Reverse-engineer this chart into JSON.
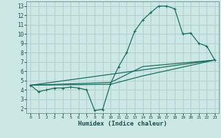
{
  "xlabel": "Humidex (Indice chaleur)",
  "bg_color": "#cce8e4",
  "grid_color": "#aacccc",
  "line_color": "#1a6b5a",
  "xlim": [
    -0.5,
    23.5
  ],
  "ylim": [
    1.5,
    13.5
  ],
  "xticks": [
    0,
    1,
    2,
    3,
    4,
    5,
    6,
    7,
    8,
    9,
    10,
    11,
    12,
    13,
    14,
    15,
    16,
    17,
    18,
    19,
    20,
    21,
    22,
    23
  ],
  "yticks": [
    2,
    3,
    4,
    5,
    6,
    7,
    8,
    9,
    10,
    11,
    12,
    13
  ],
  "line1_x": [
    0,
    1,
    2,
    3,
    4,
    5,
    6,
    7,
    8,
    9,
    10,
    11,
    12,
    13,
    14,
    15,
    16,
    17,
    18,
    19,
    20,
    21,
    22,
    23
  ],
  "line1_y": [
    4.5,
    3.8,
    4.0,
    4.2,
    4.2,
    4.3,
    4.2,
    4.0,
    1.8,
    1.9,
    4.7,
    6.5,
    8.0,
    10.3,
    11.5,
    12.3,
    13.0,
    13.0,
    12.7,
    10.0,
    10.1,
    9.0,
    8.7,
    7.2
  ],
  "line2_x": [
    0,
    23
  ],
  "line2_y": [
    4.5,
    7.2
  ],
  "line3_x": [
    0,
    10,
    14,
    23
  ],
  "line3_y": [
    4.5,
    4.8,
    6.5,
    7.2
  ],
  "line4_x": [
    0,
    10,
    14,
    23
  ],
  "line4_y": [
    4.5,
    4.6,
    5.5,
    7.2
  ]
}
